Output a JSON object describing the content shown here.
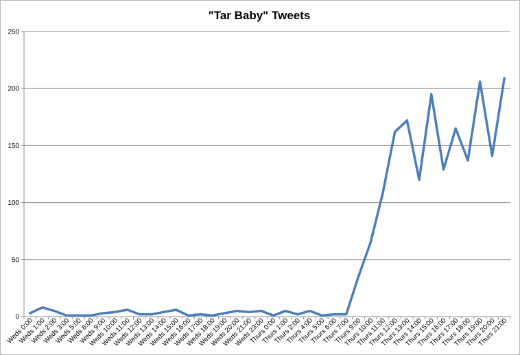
{
  "chart_data": {
    "type": "line",
    "title": "\"Tar Baby\" Tweets",
    "xlabel": "",
    "ylabel": "",
    "ylim": [
      0,
      250
    ],
    "yticks": [
      0,
      50,
      100,
      150,
      200,
      250
    ],
    "grid": "horizontal",
    "legend": "none",
    "series_color": "#4a7ebb",
    "categories": [
      "Weds 0:00",
      "Weds 1:00",
      "Weds 2:00",
      "Weds 3:00",
      "Weds 5:00",
      "Weds 8:00",
      "Weds 9:00",
      "Weds 10:00",
      "Weds 11:00",
      "Weds 12:00",
      "Weds 13:00",
      "Weds 14:00",
      "Weds 15:00",
      "Weds 16:00",
      "Weds 17:00",
      "Weds 18:00",
      "Weds 19:00",
      "Weds 20:00",
      "Weds 21:00",
      "Weds 23:00",
      "Thurs 0:00",
      "Thurs 1:00",
      "Thurs 2:00",
      "Thurs 4:00",
      "Thurs 5:00",
      "Thurs 6:00",
      "Thurs 7:00",
      "Thurs 9:00",
      "Thurs 10:00",
      "Thurs 11:00",
      "Thurs 12:00",
      "Thurs 13:00",
      "Thurs 14:00",
      "Thurs 15:00",
      "Thurs 16:00",
      "Thurs 17:00",
      "Thurs 18:00",
      "Thurs 19:00",
      "Thurs 20:00",
      "Thurs 21:00"
    ],
    "series": [
      {
        "values": [
          3,
          8,
          5,
          1,
          1,
          1,
          3,
          4,
          6,
          2,
          2,
          4,
          6,
          1,
          2,
          1,
          3,
          5,
          4,
          5,
          1,
          5,
          2,
          5,
          1,
          2,
          2,
          35,
          65,
          108,
          162,
          172,
          120,
          195,
          129,
          165,
          137,
          206,
          141,
          209
        ]
      }
    ]
  }
}
